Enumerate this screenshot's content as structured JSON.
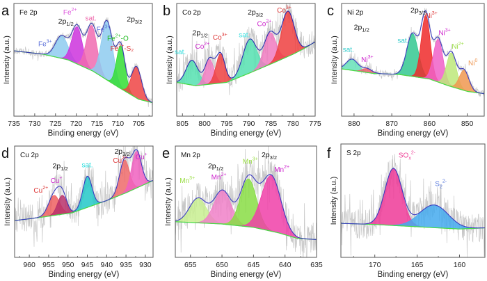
{
  "chart_data": [
    {
      "type": "area",
      "panel": "a",
      "title": "Fe 2p",
      "xlabel": "Binding energy (eV)",
      "ylabel": "Intensity (a.u.)",
      "xlim": [
        735,
        701.7
      ],
      "xticks": [
        735,
        730,
        725,
        720,
        715,
        710,
        705
      ],
      "orbital_labels": [
        {
          "text": "2p",
          "sub": "1/2",
          "x": 722.5,
          "y": 0.82
        },
        {
          "text": "2p",
          "sub": "3/2",
          "x": 706,
          "y": 0.84
        }
      ],
      "background": [
        [
          735,
          0.58
        ],
        [
          728,
          0.55
        ],
        [
          722,
          0.5
        ],
        [
          716,
          0.4
        ],
        [
          710,
          0.26
        ],
        [
          705,
          0.15
        ],
        [
          701.7,
          0.12
        ]
      ],
      "envelope_color": "#3b3bb0",
      "peaks": [
        {
          "name": "Fe³⁺",
          "label": "Fe",
          "sup": "3+",
          "center": 723.5,
          "height": 0.2,
          "fwhm": 3.6,
          "color": "#8ecbf0",
          "label_color": "#5a6fd8",
          "label_at": [
            727.5,
            0.62
          ]
        },
        {
          "name": "Fe²⁺",
          "label": "Fe",
          "sup": "2+",
          "center": 719.8,
          "height": 0.33,
          "fwhm": 3.0,
          "color": "#cc33dd",
          "label_color": "#dd55dd",
          "label_at": [
            721.5,
            0.9
          ]
        },
        {
          "name": "sat.",
          "label": "sat.",
          "sup": "",
          "center": 716.3,
          "height": 0.4,
          "fwhm": 3.0,
          "color": "#f06ab0",
          "label_color": "#ee66aa",
          "label_at": [
            716.5,
            0.85
          ]
        },
        {
          "name": "Fe³⁺",
          "label": "Fe",
          "sup": "3+",
          "center": 712.6,
          "height": 0.52,
          "fwhm": 3.2,
          "color": "#8ecbf0",
          "label_color": "#5a6fd8",
          "label_at": [
            713.5,
            0.75
          ]
        },
        {
          "name": "Fe²⁺-O",
          "label": "Fe",
          "sup": "2+",
          "suffix": "-O",
          "center": 709.3,
          "height": 0.38,
          "fwhm": 2.4,
          "color": "#33dd33",
          "label_color": "#22bb22",
          "label_at": [
            710,
            0.67
          ]
        },
        {
          "name": "Fe²⁺-S₂",
          "label": "Fe",
          "sup": "2+",
          "suffix": "-S₂",
          "center": 705.5,
          "height": 0.28,
          "fwhm": 2.8,
          "color": "#ee4444",
          "label_color": "#dd3333",
          "label_at": [
            709,
            0.58
          ]
        }
      ],
      "noise": 0.03
    },
    {
      "type": "area",
      "panel": "b",
      "title": "Co 2p",
      "xlabel": "Binding energy (eV)",
      "ylabel": "Intensity (a.u.)",
      "xlim": [
        806.3,
        775
      ],
      "xticks": [
        805,
        800,
        795,
        790,
        785,
        780,
        775
      ],
      "orbital_labels": [
        {
          "text": "2p",
          "sub": "1/2",
          "x": 801,
          "y": 0.72
        },
        {
          "text": "2p",
          "sub": "3/2",
          "x": 788.5,
          "y": 0.9
        }
      ],
      "background": [
        [
          806.3,
          0.3
        ],
        [
          802,
          0.27
        ],
        [
          795,
          0.3
        ],
        [
          790,
          0.38
        ],
        [
          784,
          0.48
        ],
        [
          780,
          0.55
        ],
        [
          777.5,
          0.6
        ],
        [
          775,
          0.66
        ]
      ],
      "envelope_color": "#2b2bb0",
      "peaks": [
        {
          "name": "sat.",
          "label": "sat.",
          "sup": "",
          "center": 802.8,
          "height": 0.22,
          "fwhm": 3.2,
          "color": "#55e0b0",
          "label_color": "#33dddd",
          "label_at": [
            805.5,
            0.55
          ]
        },
        {
          "name": "Co²⁺",
          "label": "Co",
          "sup": "2+",
          "center": 798.9,
          "height": 0.22,
          "fwhm": 2.4,
          "color": "#f07ac0",
          "label_color": "#cc22cc",
          "label_at": [
            800.5,
            0.6
          ]
        },
        {
          "name": "Co³⁺",
          "label": "Co",
          "sup": "3+",
          "center": 796.4,
          "height": 0.26,
          "fwhm": 2.4,
          "color": "#ee4040",
          "label_color": "#dd3333",
          "label_at": [
            796.5,
            0.68
          ]
        },
        {
          "name": "sat.",
          "label": "sat.",
          "sup": "",
          "center": 789.8,
          "height": 0.3,
          "fwhm": 3.6,
          "color": "#55e0b0",
          "label_color": "#33dddd",
          "label_at": [
            791,
            0.7
          ]
        },
        {
          "name": "Co²⁺",
          "label": "Co",
          "sup": "2+",
          "center": 785.2,
          "height": 0.28,
          "fwhm": 3.2,
          "color": "#f07ac0",
          "label_color": "#cc22cc",
          "label_at": [
            786.5,
            0.8
          ]
        },
        {
          "name": "Co³⁺",
          "label": "Co",
          "sup": "3+",
          "center": 781.2,
          "height": 0.4,
          "fwhm": 3.4,
          "color": "#ee4040",
          "label_color": "#dd3333",
          "label_at": [
            782,
            0.92
          ]
        }
      ],
      "noise": 0.12
    },
    {
      "type": "area",
      "panel": "c",
      "title": "Ni 2p",
      "xlabel": "Binding energy (eV)",
      "ylabel": "Intensity (a.u.)",
      "xlim": [
        883.3,
        845.5
      ],
      "xticks": [
        880,
        870,
        860,
        850
      ],
      "orbital_labels": [
        {
          "text": "2p",
          "sub": "1/2",
          "x": 878,
          "y": 0.77
        },
        {
          "text": "2p",
          "sub": "3/2",
          "x": 863,
          "y": 0.92
        }
      ],
      "background": [
        [
          883.3,
          0.42
        ],
        [
          875,
          0.38
        ],
        [
          868,
          0.37
        ],
        [
          860,
          0.33
        ],
        [
          855,
          0.27
        ],
        [
          850,
          0.22
        ],
        [
          845.5,
          0.2
        ]
      ],
      "envelope_color": "#3b3bc0",
      "peaks": [
        {
          "name": "sat.",
          "label": "sat.",
          "sup": "",
          "center": 880.5,
          "height": 0.1,
          "fwhm": 3.6,
          "color": "#66e0b8",
          "label_color": "#33cccc",
          "label_at": [
            881.5,
            0.57
          ]
        },
        {
          "name": "Ni³⁺",
          "label": "Ni",
          "sup": "3+",
          "center": 876.5,
          "height": 0.035,
          "fwhm": 3.0,
          "color": "#ee6070",
          "label_color": "#cc22cc",
          "label_at": [
            876.5,
            0.48
          ]
        },
        {
          "name": "sat.",
          "label": "sat.",
          "sup": "",
          "center": 864.5,
          "height": 0.38,
          "fwhm": 3.6,
          "color": "#33c890",
          "label_color": "#33cccc",
          "label_at": [
            867,
            0.65
          ]
        },
        {
          "name": "Ni³⁺",
          "label": "Ni",
          "sup": "3+",
          "center": 861,
          "height": 0.56,
          "fwhm": 2.8,
          "color": "#ee2a2a",
          "label_color": "#dd3333",
          "label_at": [
            859.5,
            0.87
          ]
        },
        {
          "name": "Ni³⁺",
          "label": "Ni",
          "sup": "3+",
          "center": 857.7,
          "height": 0.38,
          "fwhm": 3.0,
          "color": "#f060c8",
          "label_color": "#cc22cc",
          "label_at": [
            856,
            0.72
          ]
        },
        {
          "name": "Ni²⁺",
          "label": "Ni",
          "sup": "2+",
          "center": 854.2,
          "height": 0.3,
          "fwhm": 3.0,
          "color": "#bde87a",
          "label_color": "#99dd44",
          "label_at": [
            852.5,
            0.6
          ]
        },
        {
          "name": "Ni⁰",
          "label": "Ni",
          "sup": "0",
          "center": 850.8,
          "height": 0.18,
          "fwhm": 3.0,
          "color": "#f09850",
          "label_color": "#ee9955",
          "label_at": [
            848.5,
            0.45
          ]
        }
      ],
      "noise": 0.03
    },
    {
      "type": "area",
      "panel": "d",
      "title": "Cu 2p",
      "xlabel": "Binding energy (eV)",
      "ylabel": "Intensity (a.u.)",
      "xlim": [
        963.8,
        928
      ],
      "xticks": [
        960,
        955,
        950,
        945,
        940,
        935,
        930
      ],
      "orbital_labels": [
        {
          "text": "2p",
          "sub": "1/2",
          "x": 952,
          "y": 0.8
        },
        {
          "text": "2p",
          "sub": "3/2",
          "x": 936,
          "y": 0.93
        }
      ],
      "background": [
        [
          963.8,
          0.33
        ],
        [
          957,
          0.36
        ],
        [
          949,
          0.4
        ],
        [
          940,
          0.51
        ],
        [
          935,
          0.58
        ],
        [
          928,
          0.69
        ]
      ],
      "envelope_color": "#3b3bc0",
      "peaks": [
        {
          "name": "Cu²⁺",
          "label": "Cu",
          "sup": "2+",
          "center": 953.6,
          "height": 0.18,
          "fwhm": 3.4,
          "color": "#ee6060",
          "label_color": "#dd3333",
          "label_at": [
            957,
            0.58
          ]
        },
        {
          "name": "Cu⁺",
          "label": "Cu",
          "sup": "+",
          "center": 951.5,
          "height": 0.17,
          "fwhm": 2.8,
          "color": "#b8306a",
          "label_color": "#cc22cc",
          "label_at": [
            953,
            0.67
          ]
        },
        {
          "name": "sat.",
          "label": "sat.",
          "sup": "",
          "center": 945,
          "height": 0.28,
          "fwhm": 2.8,
          "color": "#22c8c8",
          "label_color": "#22dddd",
          "label_at": [
            945,
            0.81
          ]
        },
        {
          "name": "Cu²⁺",
          "label": "Cu",
          "sup": "2+",
          "center": 935.4,
          "height": 0.3,
          "fwhm": 3.0,
          "color": "#ee6a6a",
          "label_color": "#dd3333",
          "label_at": [
            936.5,
            0.85
          ]
        },
        {
          "name": "Cu⁺",
          "label": "Cu",
          "sup": "+",
          "center": 932.3,
          "height": 0.33,
          "fwhm": 3.0,
          "color": "#f060c0",
          "label_color": "#cc22cc",
          "label_at": [
            931,
            0.88
          ]
        }
      ],
      "noise": 0.13
    },
    {
      "type": "area",
      "panel": "e",
      "title": "Mn 2p",
      "xlabel": "Binding energy (eV)",
      "ylabel": "Intensity (a.u.)",
      "xlim": [
        657.4,
        635
      ],
      "xticks": [
        655,
        650,
        645,
        640,
        635
      ],
      "orbital_labels": [
        {
          "text": "2p",
          "sub": "1/2",
          "x": 651,
          "y": 0.8
        },
        {
          "text": "2p",
          "sub": "3/2",
          "x": 642.5,
          "y": 0.9
        }
      ],
      "background": [
        [
          657.4,
          0.32
        ],
        [
          650,
          0.3
        ],
        [
          645,
          0.27
        ],
        [
          641,
          0.22
        ],
        [
          638,
          0.17
        ],
        [
          635,
          0.16
        ]
      ],
      "envelope_color": "#3b3bc0",
      "peaks": [
        {
          "name": "Mn³⁺",
          "label": "Mn",
          "sup": "3+",
          "center": 653.8,
          "height": 0.22,
          "fwhm": 3.2,
          "color": "#c8ee90",
          "label_color": "#99dd44",
          "label_at": [
            655.5,
            0.67
          ]
        },
        {
          "name": "Mn²⁺",
          "label": "Mn",
          "sup": "2+",
          "center": 649.9,
          "height": 0.3,
          "fwhm": 3.2,
          "color": "#f080c8",
          "label_color": "#cc22cc",
          "label_at": [
            650.5,
            0.7
          ]
        },
        {
          "name": "Mn³⁺",
          "label": "Mn",
          "sup": "3+",
          "center": 645.8,
          "height": 0.43,
          "fwhm": 3.0,
          "color": "#88dd44",
          "label_color": "#99dd44",
          "label_at": [
            645.5,
            0.84
          ]
        },
        {
          "name": "Mn²⁺",
          "label": "Mn",
          "sup": "2+",
          "center": 642.2,
          "height": 0.5,
          "fwhm": 3.6,
          "color": "#f040a8",
          "label_color": "#cc22cc",
          "label_at": [
            640.5,
            0.77
          ]
        }
      ],
      "noise": 0.15
    },
    {
      "type": "area",
      "panel": "f",
      "title": "S 2p",
      "xlabel": "Binding energy (eV)",
      "ylabel": "Intensity (a.u.)",
      "xlim": [
        174,
        157
      ],
      "xticks": [
        170,
        165,
        160
      ],
      "orbital_labels": [],
      "background": [
        [
          174,
          0.3
        ],
        [
          170,
          0.29
        ],
        [
          165,
          0.27
        ],
        [
          160,
          0.25
        ],
        [
          157,
          0.26
        ]
      ],
      "envelope_color": "#3b3bc0",
      "peaks": [
        {
          "name": "SOₓ²⁻",
          "label": "SO",
          "subscript": "x",
          "sup": "2-",
          "center": 167.8,
          "height": 0.5,
          "fwhm": 2.4,
          "color": "#ee3a98",
          "label_color": "#ee4499",
          "label_at": [
            166.2,
            0.88
          ]
        },
        {
          "name": "S₂²⁻",
          "label": "S",
          "subscript": "2",
          "sup": "2-",
          "center": 163,
          "height": 0.2,
          "fwhm": 4.0,
          "color": "#44aaee",
          "label_color": "#5577dd",
          "label_at": [
            162.2,
            0.63
          ]
        }
      ],
      "noise": 0.13
    }
  ]
}
